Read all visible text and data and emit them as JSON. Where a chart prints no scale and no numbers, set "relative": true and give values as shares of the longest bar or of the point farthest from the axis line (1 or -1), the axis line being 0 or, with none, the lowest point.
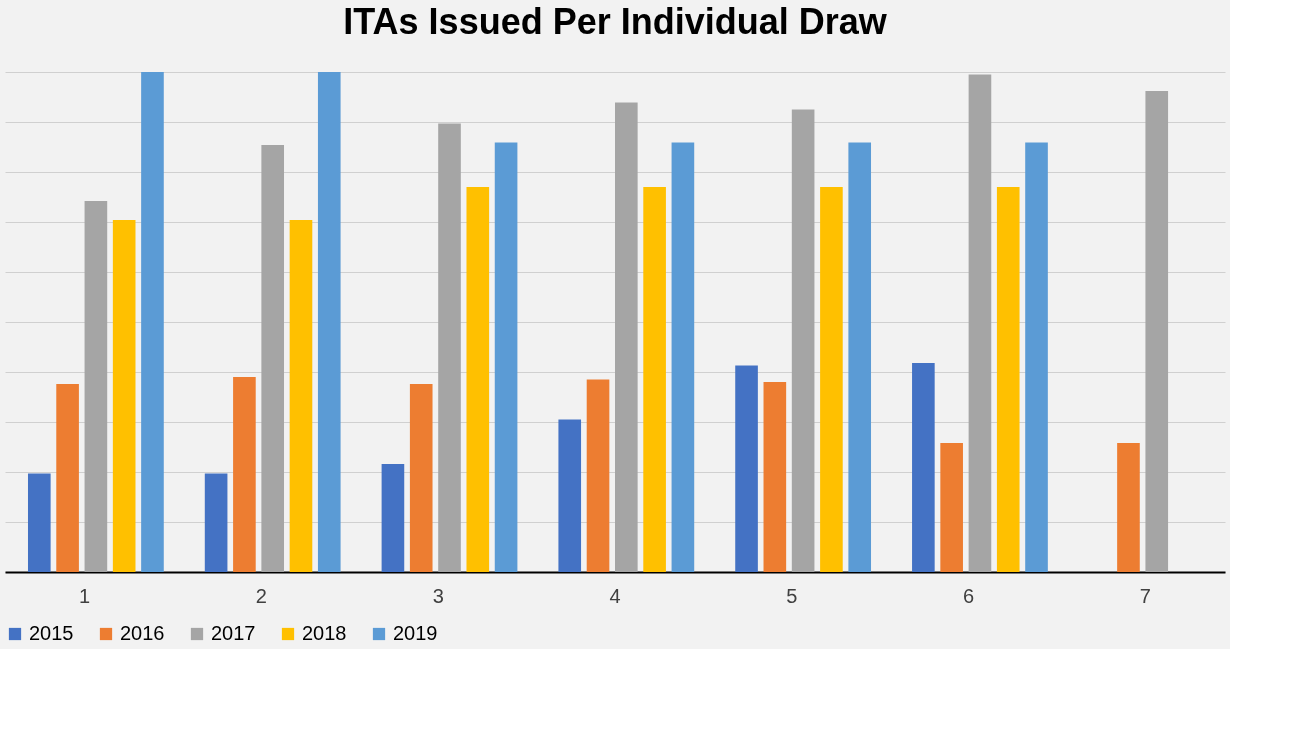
{
  "chart_data": {
    "type": "bar",
    "title": "ITAs Issued Per Individual Draw",
    "relative": true,
    "grid": "y",
    "legend": "bottom",
    "categories": [
      "1",
      "2",
      "3",
      "4",
      "5",
      "6",
      "7"
    ],
    "series": [
      {
        "name": "2015",
        "color": "#4472c4",
        "values": [
          0.197,
          0.197,
          0.216,
          0.305,
          0.413,
          0.418,
          null
        ]
      },
      {
        "name": "2016",
        "color": "#ed7d31",
        "values": [
          0.376,
          0.39,
          0.376,
          0.385,
          0.38,
          0.258,
          0.258
        ]
      },
      {
        "name": "2017",
        "color": "#a5a5a5",
        "values": [
          0.742,
          0.854,
          0.897,
          0.939,
          0.925,
          0.995,
          0.962
        ]
      },
      {
        "name": "2018",
        "color": "#ffc000",
        "values": [
          0.704,
          0.704,
          0.77,
          0.77,
          0.77,
          0.77,
          null
        ]
      },
      {
        "name": "2019",
        "color": "#5b9bd5",
        "values": [
          1,
          1,
          0.859,
          0.859,
          0.859,
          0.859,
          null
        ]
      }
    ]
  }
}
